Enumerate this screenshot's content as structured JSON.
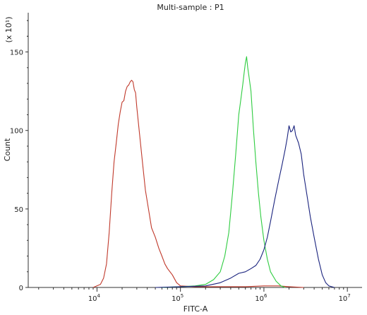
{
  "chart_data": {
    "type": "line",
    "title": "Multi-sample : P1",
    "xlabel": "FITC-A",
    "ylabel": "Count",
    "y_multiplier_label": "(x 10¹)",
    "x_scale": "log",
    "xlim": [
      1500,
      15000000
    ],
    "ylim": [
      0,
      175
    ],
    "x_ticks": [
      {
        "value": 10000,
        "base": "10",
        "exp": "4"
      },
      {
        "value": 100000,
        "base": "10",
        "exp": "5"
      },
      {
        "value": 1000000,
        "base": "10",
        "exp": "6"
      },
      {
        "value": 10000000,
        "base": "10",
        "exp": "7"
      }
    ],
    "y_ticks": [
      0,
      50,
      100,
      150
    ],
    "grid": false,
    "series": [
      {
        "color": "#c0392b",
        "points": [
          [
            9000,
            0
          ],
          [
            11000,
            2
          ],
          [
            12000,
            6
          ],
          [
            13000,
            15
          ],
          [
            14000,
            35
          ],
          [
            15000,
            60
          ],
          [
            16000,
            80
          ],
          [
            17000,
            92
          ],
          [
            18000,
            104
          ],
          [
            19000,
            112
          ],
          [
            20000,
            118
          ],
          [
            21000,
            119
          ],
          [
            22000,
            125
          ],
          [
            23000,
            128
          ],
          [
            24000,
            129
          ],
          [
            25000,
            131
          ],
          [
            26000,
            132
          ],
          [
            27000,
            131
          ],
          [
            28000,
            126
          ],
          [
            29000,
            124
          ],
          [
            30000,
            115
          ],
          [
            32000,
            100
          ],
          [
            35000,
            80
          ],
          [
            38000,
            62
          ],
          [
            42000,
            48
          ],
          [
            45000,
            38
          ],
          [
            50000,
            32
          ],
          [
            55000,
            25
          ],
          [
            60000,
            20
          ],
          [
            65000,
            15
          ],
          [
            70000,
            12
          ],
          [
            80000,
            8
          ],
          [
            90000,
            3
          ],
          [
            100000,
            1
          ],
          [
            150000,
            0.5
          ],
          [
            300000,
            0.5
          ],
          [
            600000,
            0.5
          ],
          [
            1000000,
            1
          ],
          [
            1500000,
            1
          ],
          [
            2000000,
            0.5
          ],
          [
            3000000,
            0
          ]
        ]
      },
      {
        "color": "#2ecc40",
        "points": [
          [
            60000,
            0
          ],
          [
            100000,
            0.5
          ],
          [
            150000,
            1
          ],
          [
            200000,
            2
          ],
          [
            250000,
            5
          ],
          [
            300000,
            10
          ],
          [
            340000,
            20
          ],
          [
            380000,
            35
          ],
          [
            420000,
            60
          ],
          [
            460000,
            85
          ],
          [
            500000,
            110
          ],
          [
            530000,
            120
          ],
          [
            560000,
            130
          ],
          [
            580000,
            137
          ],
          [
            600000,
            143
          ],
          [
            620000,
            147
          ],
          [
            640000,
            140
          ],
          [
            660000,
            135
          ],
          [
            700000,
            125
          ],
          [
            750000,
            100
          ],
          [
            800000,
            80
          ],
          [
            860000,
            60
          ],
          [
            920000,
            45
          ],
          [
            1000000,
            30
          ],
          [
            1100000,
            18
          ],
          [
            1200000,
            10
          ],
          [
            1400000,
            4
          ],
          [
            1600000,
            1
          ],
          [
            1800000,
            0
          ]
        ]
      },
      {
        "color": "#1a237e",
        "points": [
          [
            50000,
            0
          ],
          [
            100000,
            0.5
          ],
          [
            200000,
            1
          ],
          [
            300000,
            3
          ],
          [
            400000,
            6
          ],
          [
            500000,
            9
          ],
          [
            600000,
            10
          ],
          [
            700000,
            12
          ],
          [
            800000,
            14
          ],
          [
            900000,
            18
          ],
          [
            1000000,
            24
          ],
          [
            1100000,
            32
          ],
          [
            1200000,
            42
          ],
          [
            1350000,
            56
          ],
          [
            1500000,
            68
          ],
          [
            1650000,
            78
          ],
          [
            1800000,
            88
          ],
          [
            1900000,
            95
          ],
          [
            2000000,
            103
          ],
          [
            2100000,
            99
          ],
          [
            2200000,
            100
          ],
          [
            2300000,
            103
          ],
          [
            2400000,
            97
          ],
          [
            2600000,
            92
          ],
          [
            2800000,
            85
          ],
          [
            3000000,
            72
          ],
          [
            3300000,
            58
          ],
          [
            3600000,
            45
          ],
          [
            4000000,
            32
          ],
          [
            4500000,
            18
          ],
          [
            5000000,
            8
          ],
          [
            5500000,
            3
          ],
          [
            6000000,
            1
          ],
          [
            7000000,
            0
          ]
        ]
      }
    ]
  }
}
